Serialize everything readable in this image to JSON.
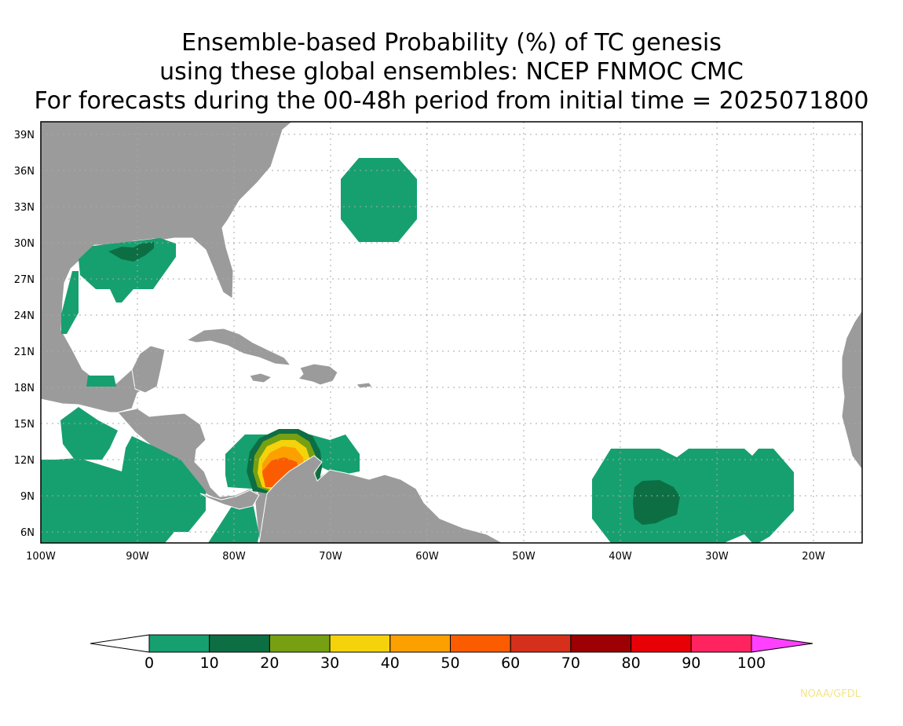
{
  "title": {
    "line1": "Ensemble-based Probability (%) of TC genesis",
    "line2": "using these global ensembles:    NCEP FNMOC CMC",
    "line3": "For forecasts during the 00-48h period from initial time = 2025071800"
  },
  "map": {
    "lon_range": [
      -100,
      -15
    ],
    "lat_range": [
      5,
      40
    ],
    "lon_ticks": [
      "100W",
      "90W",
      "80W",
      "70W",
      "60W",
      "50W",
      "40W",
      "30W",
      "20W"
    ],
    "lat_ticks": [
      "39N",
      "36N",
      "33N",
      "30N",
      "27N",
      "24N",
      "21N",
      "18N",
      "15N",
      "12N",
      "9N",
      "6N"
    ]
  },
  "colorbar": {
    "labels": [
      "0",
      "10",
      "20",
      "30",
      "40",
      "50",
      "60",
      "70",
      "80",
      "90",
      "100"
    ],
    "colors": [
      "#16a06f",
      "#0d6e44",
      "#76a012",
      "#f4d30c",
      "#fca000",
      "#fc5c00",
      "#d6301c",
      "#9c0002",
      "#e70006",
      "#ff2460"
    ],
    "low_color": "#ffffff",
    "high_color": "#ff40ff"
  },
  "credit": "NOAA/GFDL"
}
